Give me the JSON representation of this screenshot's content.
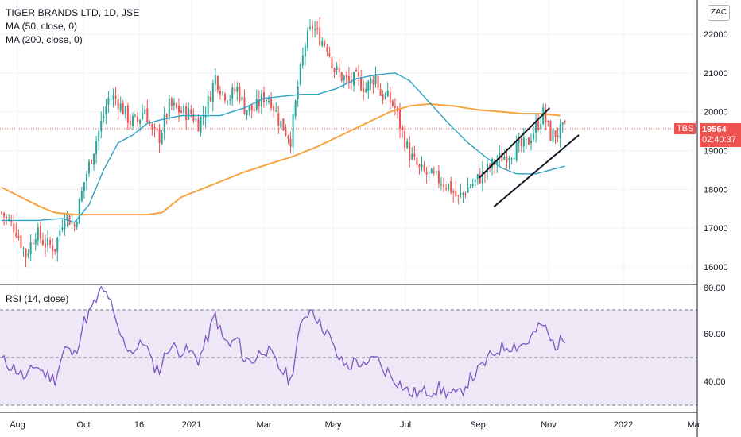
{
  "title_line": "TIGER BRANDS LTD, 1D, JSE",
  "ma50_label": "MA (50, close, 0)",
  "ma200_label": "MA (200, close, 0)",
  "rsi_label": "RSI (14, close)",
  "currency_button": "ZAC",
  "symbol_tag": "TBS",
  "last_price_tag": "19564",
  "countdown_tag": "02:40:37",
  "colors": {
    "up": "#26a69a",
    "down": "#ef5350",
    "ma50": "#2fa3c4",
    "ma200": "#f7a541",
    "rsi": "#7e57c2",
    "rsi_band": "#ede7f6",
    "channel": "#131722",
    "last_price_line": "#ef5350"
  },
  "chart_data": [
    {
      "type": "candlestick",
      "title": "TIGER BRANDS LTD, 1D, JSE",
      "x_ticks": [
        "Aug",
        "Oct",
        "16",
        "2021",
        "Mar",
        "May",
        "Jul",
        "Sep",
        "Nov",
        "2022",
        "Ma"
      ],
      "y_ticks": [
        16000,
        17000,
        18000,
        19000,
        20000,
        21000,
        22000
      ],
      "ylim": [
        15700,
        22650
      ],
      "close_series_anchors": [
        [
          0,
          17400
        ],
        [
          6,
          16950
        ],
        [
          10,
          16300
        ],
        [
          14,
          16900
        ],
        [
          18,
          16600
        ],
        [
          22,
          16500
        ],
        [
          26,
          17400
        ],
        [
          30,
          17050
        ],
        [
          34,
          18200
        ],
        [
          38,
          19050
        ],
        [
          41,
          19700
        ],
        [
          44,
          20350
        ],
        [
          47,
          20350
        ],
        [
          50,
          20050
        ],
        [
          53,
          19750
        ],
        [
          56,
          19750
        ],
        [
          59,
          20100
        ],
        [
          62,
          19450
        ],
        [
          65,
          19350
        ],
        [
          69,
          20150
        ],
        [
          74,
          20000
        ],
        [
          78,
          19950
        ],
        [
          81,
          19700
        ],
        [
          84,
          20050
        ],
        [
          88,
          20900
        ],
        [
          91,
          20500
        ],
        [
          94,
          20400
        ],
        [
          97,
          20600
        ],
        [
          100,
          20100
        ],
        [
          104,
          20050
        ],
        [
          108,
          20400
        ],
        [
          111,
          20300
        ],
        [
          114,
          19800
        ],
        [
          117,
          19500
        ],
        [
          119,
          19300
        ],
        [
          122,
          20650
        ],
        [
          125,
          21750
        ],
        [
          128,
          22200
        ],
        [
          131,
          21900
        ],
        [
          134,
          21700
        ],
        [
          137,
          21100
        ],
        [
          140,
          20900
        ],
        [
          143,
          20750
        ],
        [
          146,
          20850
        ],
        [
          150,
          20600
        ],
        [
          154,
          20950
        ],
        [
          156,
          20450
        ],
        [
          159,
          20350
        ],
        [
          162,
          20100
        ],
        [
          165,
          19450
        ],
        [
          168,
          18900
        ],
        [
          172,
          18500
        ],
        [
          176,
          18350
        ],
        [
          180,
          18250
        ],
        [
          184,
          18100
        ],
        [
          188,
          17750
        ],
        [
          192,
          18050
        ],
        [
          196,
          18250
        ],
        [
          200,
          18500
        ],
        [
          204,
          18750
        ],
        [
          208,
          18900
        ],
        [
          212,
          19050
        ],
        [
          216,
          19150
        ],
        [
          220,
          19600
        ],
        [
          223,
          19950
        ],
        [
          226,
          19400
        ],
        [
          229,
          19450
        ],
        [
          232,
          19564
        ]
      ],
      "ma50_anchors": [
        [
          0,
          17200
        ],
        [
          15,
          17200
        ],
        [
          25,
          17250
        ],
        [
          30,
          17150
        ],
        [
          36,
          17600
        ],
        [
          42,
          18500
        ],
        [
          48,
          19200
        ],
        [
          54,
          19400
        ],
        [
          60,
          19700
        ],
        [
          66,
          19800
        ],
        [
          74,
          19900
        ],
        [
          82,
          19900
        ],
        [
          90,
          19900
        ],
        [
          100,
          20100
        ],
        [
          108,
          20350
        ],
        [
          116,
          20400
        ],
        [
          124,
          20450
        ],
        [
          130,
          20450
        ],
        [
          138,
          20600
        ],
        [
          146,
          20850
        ],
        [
          154,
          20950
        ],
        [
          162,
          21000
        ],
        [
          168,
          20800
        ],
        [
          176,
          20250
        ],
        [
          184,
          19700
        ],
        [
          192,
          19200
        ],
        [
          200,
          18800
        ],
        [
          206,
          18550
        ],
        [
          212,
          18400
        ],
        [
          220,
          18400
        ],
        [
          226,
          18500
        ],
        [
          232,
          18600
        ]
      ],
      "ma200_anchors": [
        [
          0,
          18050
        ],
        [
          8,
          17800
        ],
        [
          16,
          17550
        ],
        [
          22,
          17400
        ],
        [
          30,
          17350
        ],
        [
          40,
          17350
        ],
        [
          52,
          17350
        ],
        [
          60,
          17350
        ],
        [
          66,
          17400
        ],
        [
          74,
          17800
        ],
        [
          82,
          18000
        ],
        [
          92,
          18250
        ],
        [
          100,
          18450
        ],
        [
          110,
          18650
        ],
        [
          120,
          18850
        ],
        [
          130,
          19100
        ],
        [
          140,
          19400
        ],
        [
          150,
          19700
        ],
        [
          160,
          20000
        ],
        [
          168,
          20150
        ],
        [
          176,
          20200
        ],
        [
          186,
          20150
        ],
        [
          196,
          20050
        ],
        [
          206,
          20000
        ],
        [
          214,
          19950
        ],
        [
          222,
          19950
        ],
        [
          230,
          19900
        ]
      ],
      "channel_lines": [
        {
          "from": [
            197,
            18300
          ],
          "to": [
            226,
            20100
          ]
        },
        {
          "from": [
            203,
            17550
          ],
          "to": [
            238,
            19400
          ]
        }
      ],
      "last_price": 19564
    },
    {
      "type": "line",
      "title": "RSI (14, close)",
      "y_ticks": [
        40.0,
        60.0
      ],
      "top_axis_fragment": "80.00",
      "ylim": [
        28,
        80
      ],
      "bands": {
        "upper": 70,
        "middle": 50,
        "lower": 30
      },
      "rsi_anchors": [
        [
          0,
          49
        ],
        [
          6,
          45
        ],
        [
          10,
          41
        ],
        [
          14,
          47
        ],
        [
          18,
          43
        ],
        [
          22,
          41
        ],
        [
          26,
          54
        ],
        [
          30,
          51
        ],
        [
          34,
          65
        ],
        [
          38,
          72
        ],
        [
          41,
          78
        ],
        [
          44,
          76
        ],
        [
          47,
          64
        ],
        [
          50,
          57
        ],
        [
          53,
          53
        ],
        [
          56,
          54
        ],
        [
          59,
          57
        ],
        [
          62,
          47
        ],
        [
          65,
          45
        ],
        [
          69,
          55
        ],
        [
          74,
          53
        ],
        [
          78,
          52
        ],
        [
          81,
          49
        ],
        [
          84,
          56
        ],
        [
          88,
          68
        ],
        [
          91,
          58
        ],
        [
          94,
          55
        ],
        [
          97,
          58
        ],
        [
          100,
          49
        ],
        [
          104,
          49
        ],
        [
          108,
          54
        ],
        [
          111,
          51
        ],
        [
          114,
          46
        ],
        [
          117,
          43
        ],
        [
          119,
          40
        ],
        [
          122,
          58
        ],
        [
          125,
          68
        ],
        [
          128,
          71
        ],
        [
          131,
          64
        ],
        [
          134,
          61
        ],
        [
          137,
          53
        ],
        [
          140,
          48
        ],
        [
          143,
          46
        ],
        [
          146,
          49
        ],
        [
          150,
          45
        ],
        [
          154,
          52
        ],
        [
          156,
          46
        ],
        [
          159,
          44
        ],
        [
          162,
          41
        ],
        [
          165,
          38
        ],
        [
          168,
          35
        ],
        [
          172,
          35
        ],
        [
          176,
          36
        ],
        [
          180,
          37
        ],
        [
          184,
          35
        ],
        [
          188,
          34
        ],
        [
          192,
          40
        ],
        [
          196,
          44
        ],
        [
          200,
          49
        ],
        [
          204,
          53
        ],
        [
          208,
          55
        ],
        [
          212,
          55
        ],
        [
          216,
          56
        ],
        [
          220,
          61
        ],
        [
          223,
          64
        ],
        [
          226,
          57
        ],
        [
          229,
          55
        ],
        [
          232,
          59
        ]
      ]
    }
  ]
}
